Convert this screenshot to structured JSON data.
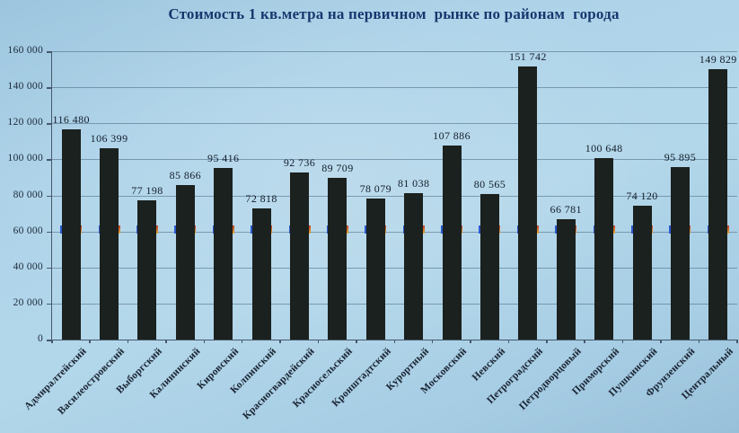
{
  "title": "Стоимость 1 кв.метра на первичном  рынке по районам  города",
  "colors": {
    "background": "#aed3e9",
    "title_text": "#16386e",
    "bar_fill": "#1b211e",
    "axis_line": "#46586c",
    "gridline": "#486680",
    "tick_text": "#1c2a3a",
    "value_label_text": "#121d2a",
    "category_label_text": "#1a2433",
    "edge_marker_left_blue": "#2b59d0",
    "edge_marker_right_red": "#c43b28",
    "edge_marker_right_yellow": "#e2aa35"
  },
  "chart_data": {
    "type": "bar",
    "title": "Стоимость 1 кв.метра на первичном  рынке по районам  города",
    "categories": [
      "Адмиралтейский",
      "Василеостровский",
      "Выборгский",
      "Калининский",
      "Кировский",
      "Колпинский",
      "Красногвардейский",
      "Красносельский",
      "Кронштадтский",
      "Курортный",
      "Московский",
      "Невский",
      "Петроградский",
      "Петродворцовый",
      "Приморский",
      "Пушкинский",
      "Фрунзенский",
      "Центральный"
    ],
    "values": [
      116480,
      106399,
      77198,
      85866,
      95416,
      72818,
      92736,
      89709,
      78079,
      81038,
      107886,
      80565,
      151742,
      66781,
      100648,
      74120,
      95895,
      149829
    ],
    "value_labels": [
      "116 480",
      "106 399",
      "77 198",
      "85 866",
      "95 416",
      "72 818",
      "92 736",
      "89 709",
      "78 079",
      "81 038",
      "107 886",
      "80 565",
      "151 742",
      "66 781",
      "100 648",
      "74 120",
      "95 895",
      "149 829"
    ],
    "xlabel": "",
    "ylabel": "",
    "ylim": [
      0,
      160000
    ],
    "ytick_step": 20000,
    "ytick_labels": [
      "0",
      "20 000",
      "40 000",
      "60 000",
      "80 000",
      "100 000",
      "120 000",
      "140 000",
      "160 000"
    ],
    "grid": true,
    "legend_position": "none",
    "edge_markers": {
      "note_visible_in_pixels": "small blue mark on left edge and small red/yellow mark on right edge of every bar",
      "approx_value": 63500
    }
  }
}
